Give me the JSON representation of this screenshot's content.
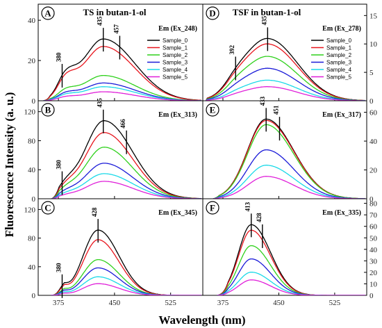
{
  "ylabel": "Fluorescence Intensity (a. u.)",
  "xlabel": "Wavelength (nm)",
  "column_titles": [
    "TS in butan-1-ol",
    "TSF in butan-1-ol"
  ],
  "series_names": [
    "Sample_0",
    "Sample_1",
    "Sample_2",
    "Sample_3",
    "Sample_4",
    "Sample_5"
  ],
  "colors": [
    "#000000",
    "#e8141c",
    "#2fd11c",
    "#1a1ad8",
    "#19d9e8",
    "#e01fd9"
  ],
  "x_ticks": [
    "375",
    "450",
    "525"
  ],
  "chart_data": [
    {
      "type": "line",
      "letter": "A",
      "em_label": "Em (Ex_248)",
      "axis_side": "left",
      "title": "TS in butan-1-ol",
      "show_legend": true,
      "xlim": [
        348,
        568
      ],
      "ylim": [
        0,
        48
      ],
      "y_ticks": [
        0,
        20,
        40
      ],
      "peak_x": 435,
      "amps": [
        33,
        29,
        13.5,
        9.5,
        7.5,
        4.8
      ],
      "shape": {
        "components": [
          {
            "mu": 435,
            "sigmaL": 27,
            "sigmaR": 42,
            "a": 0.93
          },
          {
            "mu": 385,
            "sigmaL": 11,
            "sigmaR": 13,
            "a": 0.3
          }
        ],
        "start": 355,
        "end": 566,
        "tail": 9
      },
      "annotations": [
        {
          "text": "380",
          "x": 380
        },
        {
          "text": "435",
          "x": 435
        },
        {
          "text": "457",
          "x": 457
        }
      ]
    },
    {
      "type": "line",
      "letter": "D",
      "em_label": "Em (Ex_278)",
      "axis_side": "right",
      "title": "TSF in butan-1-ol",
      "show_legend": true,
      "xlim": [
        348,
        568
      ],
      "ylim": [
        0,
        17
      ],
      "y_ticks": [
        0,
        5,
        10,
        15
      ],
      "peak_x": 435,
      "amps": [
        11.5,
        10.5,
        8.2,
        6,
        3.8,
        2.6
      ],
      "shape": {
        "components": [
          {
            "mu": 435,
            "sigmaL": 32,
            "sigmaR": 40,
            "a": 0.95
          },
          {
            "mu": 392,
            "sigmaL": 14,
            "sigmaR": 16,
            "a": 0.12
          }
        ],
        "start": 352,
        "end": 566,
        "tail": 2
      },
      "annotations": [
        {
          "text": "392",
          "x": 392
        },
        {
          "text": "435",
          "x": 435
        }
      ]
    },
    {
      "type": "line",
      "letter": "B",
      "em_label": "Em (Ex_313)",
      "axis_side": "left",
      "title": "",
      "show_legend": false,
      "xlim": [
        348,
        568
      ],
      "ylim": [
        0,
        135
      ],
      "y_ticks": [
        0,
        40,
        80,
        120
      ],
      "peak_x": 435,
      "amps": [
        112,
        95,
        74,
        51,
        36,
        25
      ],
      "shape": {
        "components": [
          {
            "mu": 436,
            "sigmaL": 26,
            "sigmaR": 38,
            "a": 0.96
          },
          {
            "mu": 385,
            "sigmaL": 10,
            "sigmaR": 12,
            "a": 0.12
          }
        ],
        "start": 366,
        "end": 566,
        "tail": 10
      },
      "annotations": [
        {
          "text": "380",
          "x": 380
        },
        {
          "text": "435",
          "x": 435
        },
        {
          "text": "466",
          "x": 466
        }
      ]
    },
    {
      "type": "line",
      "letter": "E",
      "em_label": "Em (Ex_317)",
      "axis_side": "right",
      "title": "",
      "show_legend": false,
      "xlim": [
        348,
        568
      ],
      "ylim": [
        0,
        68
      ],
      "y_ticks": [
        0,
        20,
        40,
        60
      ],
      "peak_x": 433,
      "amps": [
        57,
        56,
        53,
        35,
        24,
        16
      ],
      "shape": {
        "components": [
          {
            "mu": 433,
            "sigmaL": 25,
            "sigmaR": 37,
            "a": 0.97
          }
        ],
        "start": 362,
        "end": 566,
        "tail": 8
      },
      "annotations": [
        {
          "text": "433",
          "x": 433
        },
        {
          "text": "451",
          "x": 451
        }
      ]
    },
    {
      "type": "line",
      "letter": "C",
      "em_label": "Em (Ex_345)",
      "axis_side": "left",
      "title": "",
      "show_legend": false,
      "xlim": [
        348,
        568
      ],
      "ylim": [
        0,
        135
      ],
      "y_ticks": [
        0,
        40,
        80,
        120
      ],
      "peak_x": 428,
      "amps": [
        95,
        81,
        52,
        40,
        27,
        17
      ],
      "shape": {
        "components": [
          {
            "mu": 428,
            "sigmaL": 20,
            "sigmaR": 28,
            "a": 0.96
          },
          {
            "mu": 380,
            "sigmaL": 6,
            "sigmaR": 7,
            "a": 0.12
          }
        ],
        "start": 365,
        "end": 566,
        "tail": 18
      },
      "annotations": [
        {
          "text": "380",
          "x": 380
        },
        {
          "text": "428",
          "x": 428
        }
      ]
    },
    {
      "type": "line",
      "letter": "F",
      "em_label": "Em (Ex_335)",
      "axis_side": "right",
      "title": "",
      "show_legend": false,
      "xlim": [
        348,
        568
      ],
      "ylim": [
        0,
        84
      ],
      "y_ticks": [
        0,
        10,
        20,
        30,
        40,
        50,
        60,
        70,
        80
      ],
      "peak_x": 413,
      "amps": [
        64,
        59,
        45,
        33,
        21,
        14
      ],
      "shape": {
        "components": [
          {
            "mu": 413,
            "sigmaL": 17,
            "sigmaR": 26,
            "a": 0.96
          }
        ],
        "start": 367,
        "end": 566,
        "tail": 15
      },
      "annotations": [
        {
          "text": "413",
          "x": 413
        },
        {
          "text": "428",
          "x": 428
        }
      ]
    }
  ]
}
